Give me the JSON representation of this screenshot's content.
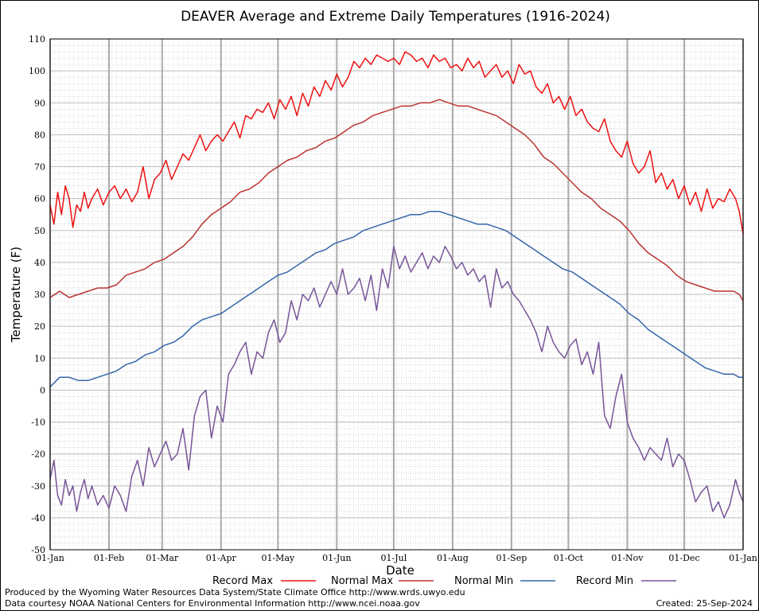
{
  "chart_data": {
    "type": "line",
    "title": "DEAVER Average and Extreme Daily Temperatures (1916-2024)",
    "xlabel": "Date",
    "ylabel": "Temperature (F)",
    "ylim": [
      -50,
      110
    ],
    "xlim": [
      0,
      365
    ],
    "grid": true,
    "legend": "bottom",
    "y_ticks": [
      -50,
      -40,
      -30,
      -20,
      -10,
      0,
      10,
      20,
      30,
      40,
      50,
      60,
      70,
      80,
      90,
      100,
      110
    ],
    "x_ticks": [
      {
        "label": "01-Jan",
        "day": 0
      },
      {
        "label": "01-Feb",
        "day": 31
      },
      {
        "label": "01-Mar",
        "day": 59
      },
      {
        "label": "01-Apr",
        "day": 90
      },
      {
        "label": "01-May",
        "day": 120
      },
      {
        "label": "01-Jun",
        "day": 151
      },
      {
        "label": "01-Jul",
        "day": 181
      },
      {
        "label": "01-Aug",
        "day": 212
      },
      {
        "label": "01-Sep",
        "day": 243
      },
      {
        "label": "01-Oct",
        "day": 273
      },
      {
        "label": "01-Nov",
        "day": 304
      },
      {
        "label": "01-Dec",
        "day": 334
      },
      {
        "label": "01-Jan",
        "day": 365
      }
    ],
    "series": [
      {
        "name": "Record Max",
        "color": "#ee1111",
        "x": [
          0,
          2,
          4,
          6,
          8,
          10,
          12,
          14,
          16,
          18,
          20,
          22,
          25,
          28,
          31,
          34,
          37,
          40,
          43,
          46,
          49,
          52,
          55,
          58,
          61,
          64,
          67,
          70,
          73,
          76,
          79,
          82,
          85,
          88,
          91,
          94,
          97,
          100,
          103,
          106,
          109,
          112,
          115,
          118,
          121,
          124,
          127,
          130,
          133,
          136,
          139,
          142,
          145,
          148,
          151,
          154,
          157,
          160,
          163,
          166,
          169,
          172,
          175,
          178,
          181,
          184,
          187,
          190,
          193,
          196,
          199,
          202,
          205,
          208,
          211,
          214,
          217,
          220,
          223,
          226,
          229,
          232,
          235,
          238,
          241,
          244,
          247,
          250,
          253,
          256,
          259,
          262,
          265,
          268,
          271,
          274,
          277,
          280,
          283,
          286,
          289,
          292,
          295,
          298,
          301,
          304,
          307,
          310,
          313,
          316,
          319,
          322,
          325,
          328,
          331,
          334,
          337,
          340,
          343,
          346,
          349,
          352,
          355,
          358,
          361,
          363,
          365
        ],
        "y": [
          58,
          52,
          62,
          55,
          64,
          60,
          51,
          58,
          56,
          62,
          57,
          60,
          63,
          58,
          62,
          64,
          60,
          63,
          59,
          62,
          70,
          60,
          66,
          68,
          72,
          66,
          70,
          74,
          72,
          76,
          80,
          75,
          78,
          80,
          78,
          81,
          84,
          79,
          86,
          85,
          88,
          87,
          90,
          85,
          91,
          88,
          92,
          86,
          93,
          89,
          95,
          92,
          97,
          94,
          99,
          95,
          98,
          103,
          101,
          104,
          102,
          105,
          104,
          103,
          104,
          102,
          106,
          105,
          103,
          104,
          101,
          105,
          103,
          104,
          101,
          102,
          100,
          104,
          101,
          103,
          98,
          100,
          102,
          98,
          100,
          96,
          102,
          99,
          100,
          95,
          93,
          96,
          90,
          92,
          88,
          92,
          86,
          88,
          84,
          82,
          81,
          85,
          78,
          75,
          73,
          78,
          71,
          68,
          70,
          75,
          65,
          68,
          63,
          66,
          60,
          64,
          58,
          62,
          56,
          63,
          57,
          60,
          59,
          63,
          60,
          56,
          49
        ]
      },
      {
        "name": "Normal Max",
        "color": "#bb3333",
        "x": [
          0,
          5,
          10,
          15,
          20,
          25,
          30,
          35,
          40,
          45,
          50,
          55,
          60,
          65,
          70,
          75,
          80,
          85,
          90,
          95,
          100,
          105,
          110,
          115,
          120,
          125,
          130,
          135,
          140,
          145,
          150,
          155,
          160,
          165,
          170,
          175,
          180,
          185,
          190,
          195,
          200,
          205,
          210,
          215,
          220,
          225,
          230,
          235,
          240,
          245,
          250,
          255,
          260,
          265,
          270,
          275,
          280,
          285,
          290,
          295,
          300,
          305,
          310,
          315,
          320,
          325,
          330,
          335,
          340,
          345,
          350,
          355,
          360,
          363,
          365
        ],
        "y": [
          29,
          31,
          29,
          30,
          31,
          32,
          32,
          33,
          36,
          37,
          38,
          40,
          41,
          43,
          45,
          48,
          52,
          55,
          57,
          59,
          62,
          63,
          65,
          68,
          70,
          72,
          73,
          75,
          76,
          78,
          79,
          81,
          83,
          84,
          86,
          87,
          88,
          89,
          89,
          90,
          90,
          91,
          90,
          89,
          89,
          88,
          87,
          86,
          84,
          82,
          80,
          77,
          73,
          71,
          68,
          65,
          62,
          60,
          57,
          55,
          53,
          50,
          46,
          43,
          41,
          39,
          36,
          34,
          33,
          32,
          31,
          31,
          31,
          30,
          28
        ]
      },
      {
        "name": "Normal Min",
        "color": "#3366aa",
        "x": [
          0,
          5,
          10,
          15,
          20,
          25,
          30,
          35,
          40,
          45,
          50,
          55,
          60,
          65,
          70,
          75,
          80,
          85,
          90,
          95,
          100,
          105,
          110,
          115,
          120,
          125,
          130,
          135,
          140,
          145,
          150,
          155,
          160,
          165,
          170,
          175,
          180,
          185,
          190,
          195,
          200,
          205,
          210,
          215,
          220,
          225,
          230,
          235,
          240,
          245,
          250,
          255,
          260,
          265,
          270,
          275,
          280,
          285,
          290,
          295,
          300,
          305,
          310,
          315,
          320,
          325,
          330,
          335,
          340,
          345,
          350,
          355,
          360,
          363,
          365
        ],
        "y": [
          1,
          4,
          4,
          3,
          3,
          4,
          5,
          6,
          8,
          9,
          11,
          12,
          14,
          15,
          17,
          20,
          22,
          23,
          24,
          26,
          28,
          30,
          32,
          34,
          36,
          37,
          39,
          41,
          43,
          44,
          46,
          47,
          48,
          50,
          51,
          52,
          53,
          54,
          55,
          55,
          56,
          56,
          55,
          54,
          53,
          52,
          52,
          51,
          50,
          48,
          46,
          44,
          42,
          40,
          38,
          37,
          35,
          33,
          31,
          29,
          27,
          24,
          22,
          19,
          17,
          15,
          13,
          11,
          9,
          7,
          6,
          5,
          5,
          4,
          4
        ]
      },
      {
        "name": "Record Min",
        "color": "#775599",
        "x": [
          0,
          2,
          4,
          6,
          8,
          10,
          12,
          14,
          16,
          18,
          20,
          22,
          25,
          28,
          31,
          34,
          37,
          40,
          43,
          46,
          49,
          52,
          55,
          58,
          61,
          64,
          67,
          70,
          73,
          76,
          79,
          82,
          85,
          88,
          91,
          94,
          97,
          100,
          103,
          106,
          109,
          112,
          115,
          118,
          121,
          124,
          127,
          130,
          133,
          136,
          139,
          142,
          145,
          148,
          151,
          154,
          157,
          160,
          163,
          166,
          169,
          172,
          175,
          178,
          181,
          184,
          187,
          190,
          193,
          196,
          199,
          202,
          205,
          208,
          211,
          214,
          217,
          220,
          223,
          226,
          229,
          232,
          235,
          238,
          241,
          244,
          247,
          250,
          253,
          256,
          259,
          262,
          265,
          268,
          271,
          274,
          277,
          280,
          283,
          286,
          289,
          292,
          295,
          298,
          301,
          304,
          307,
          310,
          313,
          316,
          319,
          322,
          325,
          328,
          331,
          334,
          337,
          340,
          343,
          346,
          349,
          352,
          355,
          358,
          361,
          363,
          365
        ],
        "y": [
          -28,
          -22,
          -33,
          -36,
          -28,
          -33,
          -30,
          -38,
          -32,
          -28,
          -34,
          -30,
          -36,
          -33,
          -37,
          -30,
          -33,
          -38,
          -27,
          -22,
          -30,
          -18,
          -24,
          -20,
          -16,
          -22,
          -20,
          -12,
          -25,
          -8,
          -2,
          0,
          -15,
          -5,
          -10,
          5,
          8,
          12,
          15,
          5,
          12,
          10,
          18,
          22,
          15,
          18,
          28,
          22,
          30,
          28,
          32,
          26,
          30,
          34,
          30,
          38,
          30,
          32,
          35,
          28,
          36,
          25,
          38,
          32,
          45,
          38,
          42,
          37,
          40,
          43,
          38,
          42,
          40,
          45,
          42,
          38,
          40,
          36,
          38,
          34,
          36,
          26,
          38,
          32,
          34,
          30,
          28,
          25,
          22,
          18,
          12,
          20,
          15,
          12,
          10,
          14,
          16,
          8,
          12,
          5,
          15,
          -8,
          -12,
          -2,
          5,
          -10,
          -15,
          -18,
          -22,
          -18,
          -20,
          -22,
          -15,
          -24,
          -20,
          -22,
          -28,
          -35,
          -32,
          -30,
          -38,
          -35,
          -40,
          -36,
          -28,
          -32,
          -35
        ]
      }
    ]
  },
  "legend": {
    "record_max": "Record Max",
    "normal_max": "Normal Max",
    "normal_min": "Normal Min",
    "record_min": "Record Min"
  },
  "footer": {
    "produced_by": "Produced by the Wyoming Water Resources Data System/State Climate Office http://www.wrds.uwyo.edu",
    "data_courtesy": "Data courtesy NOAA National Centers for Environmental Information http://www.ncei.noaa.gov",
    "created": "Created:  25-Sep-2024"
  }
}
